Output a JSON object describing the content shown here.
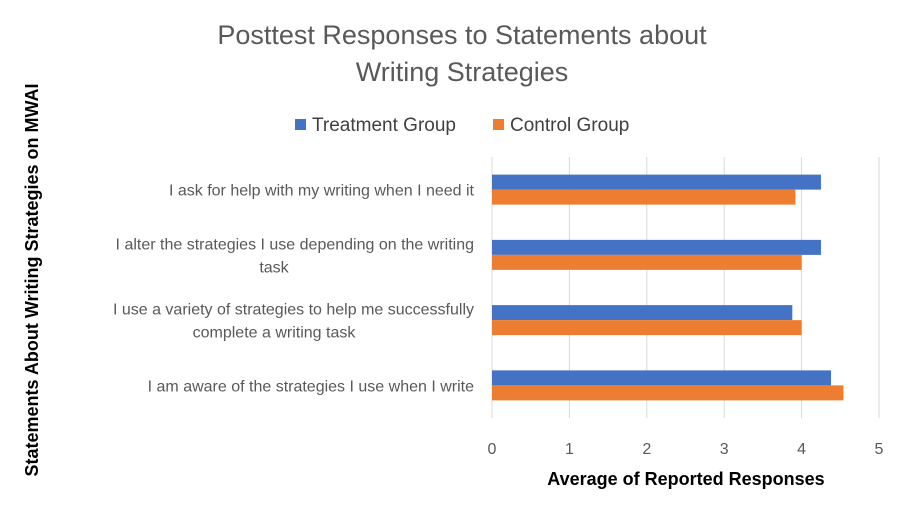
{
  "chart_data": {
    "type": "bar",
    "orientation": "horizontal",
    "title": "Posttest Responses to Statements about Writing Strategies",
    "title_lines": [
      "Posttest Responses to Statements about",
      "Writing Strategies"
    ],
    "xlabel": "Average of Reported Responses",
    "ylabel": "Statements About Writing Strategies on MWAI",
    "xlim": [
      0,
      5
    ],
    "xticks": [
      "0",
      "1",
      "2",
      "3",
      "4",
      "5"
    ],
    "grid": true,
    "legend_position": "top",
    "categories": [
      "I ask for help with my writing when I need it",
      "I alter the strategies I use depending on the writing task",
      "I use a variety of strategies to help me successfully complete a writing task",
      "I am aware of the strategies I use when I write"
    ],
    "category_lines": [
      [
        "I ask for help with my writing when I need it"
      ],
      [
        "I alter the strategies I use depending on the writing",
        "task"
      ],
      [
        "I use a variety of strategies to help me successfully",
        "complete a writing task"
      ],
      [
        "I am aware of the strategies I use when I write"
      ]
    ],
    "series": [
      {
        "name": "Treatment Group",
        "color": "#4472C4",
        "values": [
          4.25,
          4.25,
          3.88,
          4.38
        ]
      },
      {
        "name": "Control Group",
        "color": "#ED7D31",
        "values": [
          3.92,
          4.0,
          4.0,
          4.54
        ]
      }
    ]
  }
}
